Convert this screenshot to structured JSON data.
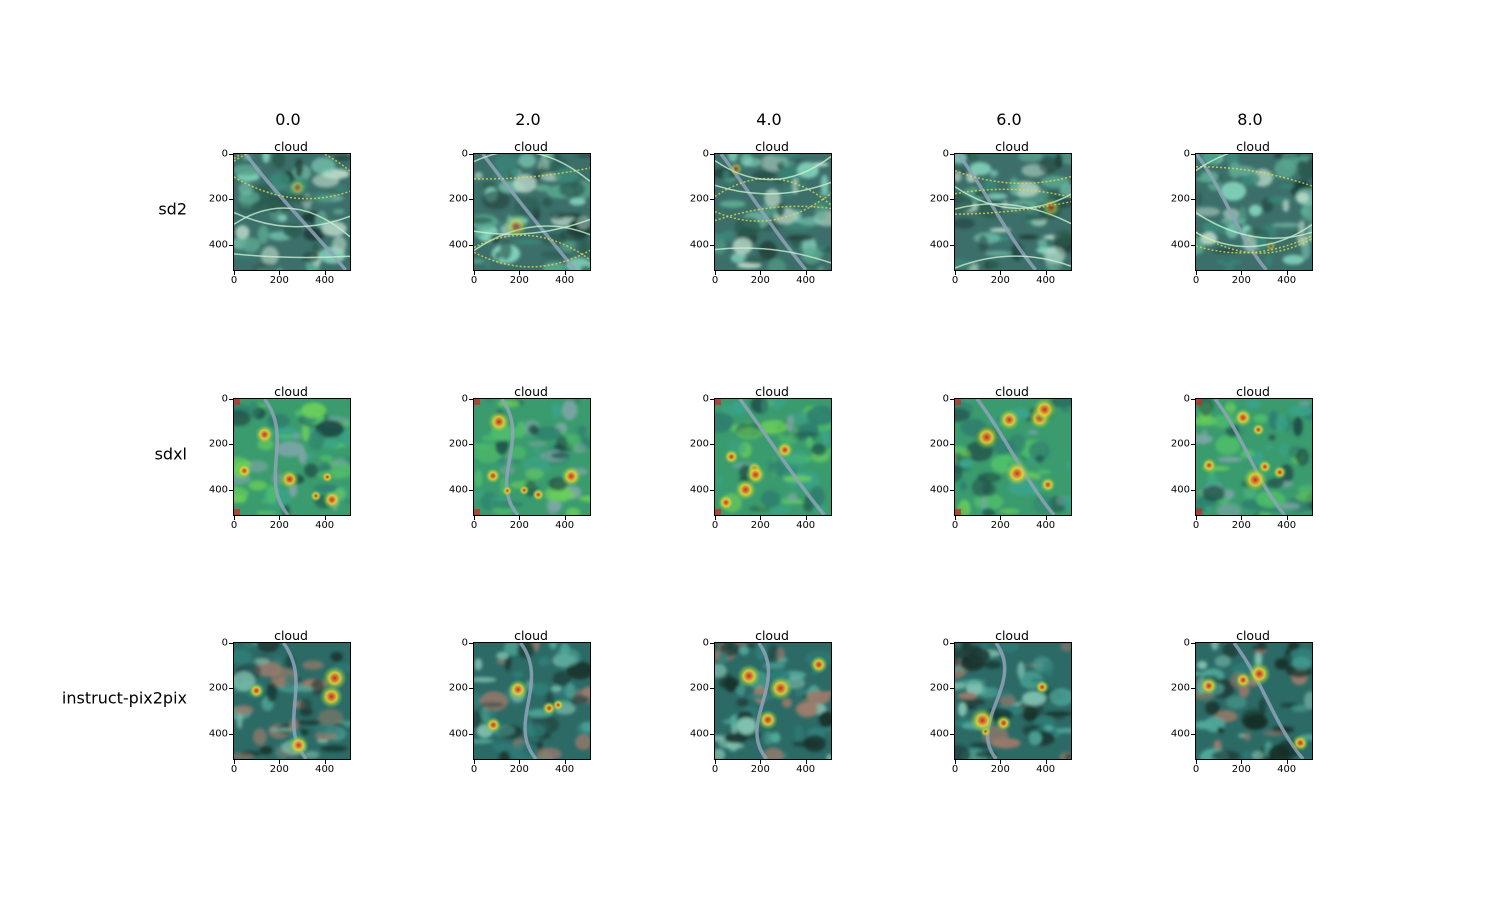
{
  "columns": [
    "0.0",
    "2.0",
    "4.0",
    "6.0",
    "8.0"
  ],
  "rows": [
    "sd2",
    "sdxl",
    "instruct-pix2pix"
  ],
  "panel_title": "cloud",
  "axis_ticks": [
    "0",
    "200",
    "400"
  ],
  "x_axis_ticks": [
    "0",
    "200",
    "400"
  ],
  "image_size": 512,
  "image_style": {
    "sd2": "stylized-satellite",
    "sdxl": "heatmap-overlay",
    "instruct-pix2pix": "satellite-with-hotspots"
  },
  "colors": {
    "base_teal": "#2f8f8a",
    "green": "#3fb85a",
    "yellow": "#e6d33a",
    "red": "#d8221c",
    "dark": "#1d3a33",
    "river": "#8fa3b8"
  }
}
